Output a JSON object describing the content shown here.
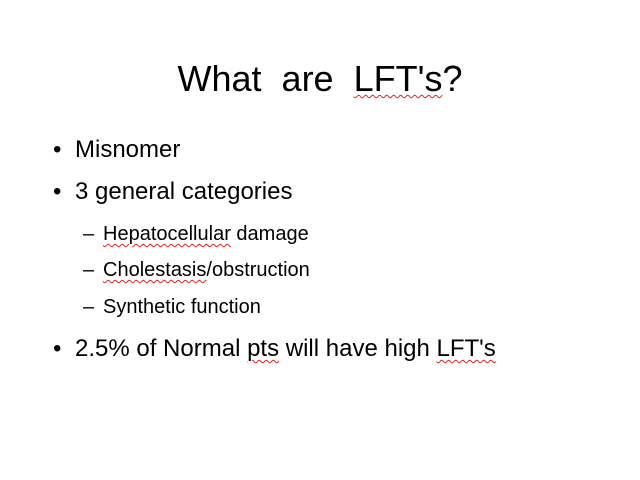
{
  "slide": {
    "title_part1": "What  are  ",
    "title_part2": "LFT's",
    "title_part3": "?",
    "bullet_marker": "•",
    "sub_marker": "–",
    "bullets": [
      {
        "text": "Misnomer"
      },
      {
        "text": "3 general categories"
      },
      {
        "text_part1": "2.5% of Normal ",
        "text_part2": "pts",
        "text_part3": " will have high ",
        "text_part4": "LFT's"
      }
    ],
    "sub_items": [
      {
        "text_part1": "Hepatocellular",
        "text_part2": " damage"
      },
      {
        "text_part1": "Cholestasis",
        "text_part2": "/obstruction"
      },
      {
        "text": "Synthetic function"
      }
    ],
    "spellcheck_color": "#e02020"
  }
}
